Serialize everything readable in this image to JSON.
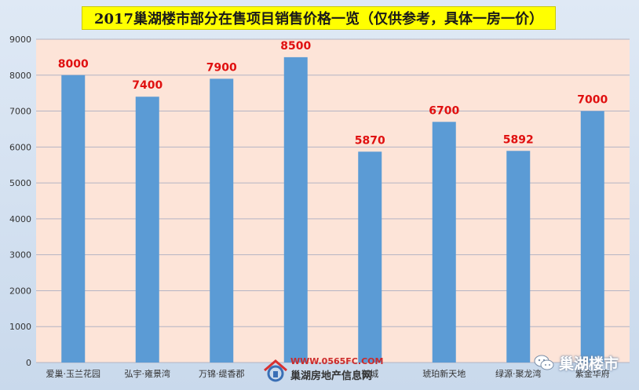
{
  "chart_data": {
    "type": "bar",
    "title": "2017巢湖楼市部分在售项目销售价格一览（仅供参考，具体一房一价）",
    "categories": [
      "爱巢·玉兰花园",
      "弘宇·雍景湾",
      "万锦·缇香郡",
      "",
      "御城",
      "琥珀新天地",
      "绿源·聚龙湾",
      "紫金华府"
    ],
    "values": [
      8000,
      7400,
      7900,
      8500,
      5870,
      6700,
      5892,
      7000
    ],
    "data_labels": [
      "8000",
      "7400",
      "7900",
      "8500",
      "5870",
      "6700",
      "5892",
      "7000"
    ],
    "yticks": [
      "0",
      "1000",
      "2000",
      "3000",
      "4000",
      "5000",
      "6000",
      "7000",
      "8000",
      "9000"
    ],
    "ylim": [
      0,
      9000
    ],
    "grid": true,
    "colors": {
      "bar": "#5b9bd5",
      "label": "#e01010",
      "plot_bg": "#fde4d8"
    }
  },
  "watermark": {
    "url": "WWW.0565FC.COM",
    "name": "巢湖房地产信息网"
  },
  "brand": {
    "name": "巢湖楼市",
    "icon": "wechat-icon"
  }
}
